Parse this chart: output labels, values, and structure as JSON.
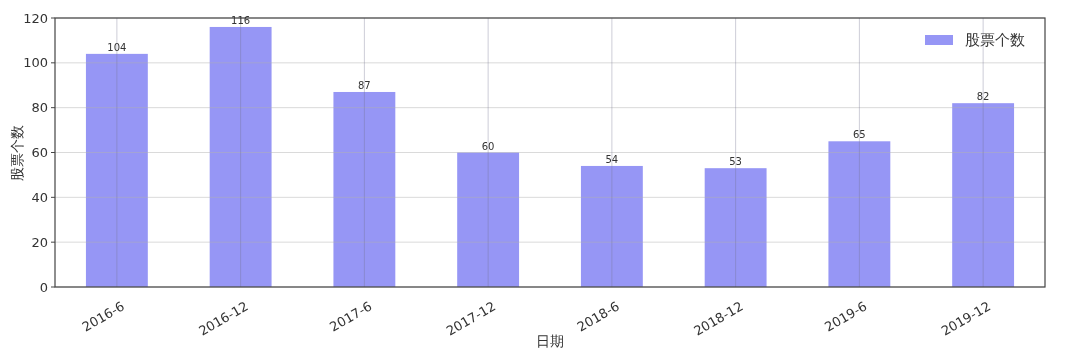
{
  "chart_data": {
    "type": "bar",
    "xlabel": "日期",
    "ylabel": "股票个数",
    "categories": [
      "2016-6",
      "2016-12",
      "2017-6",
      "2017-12",
      "2018-6",
      "2018-12",
      "2019-6",
      "2019-12"
    ],
    "series": [
      {
        "name": "股票个数",
        "color": "#9696f5",
        "values": [
          104,
          116,
          87,
          60,
          54,
          53,
          65,
          82
        ]
      }
    ],
    "ylim": [
      0,
      120
    ],
    "yticks": [
      0,
      20,
      40,
      60,
      80,
      100,
      120
    ],
    "grid": true,
    "legend": "top right",
    "data_labels": true
  }
}
